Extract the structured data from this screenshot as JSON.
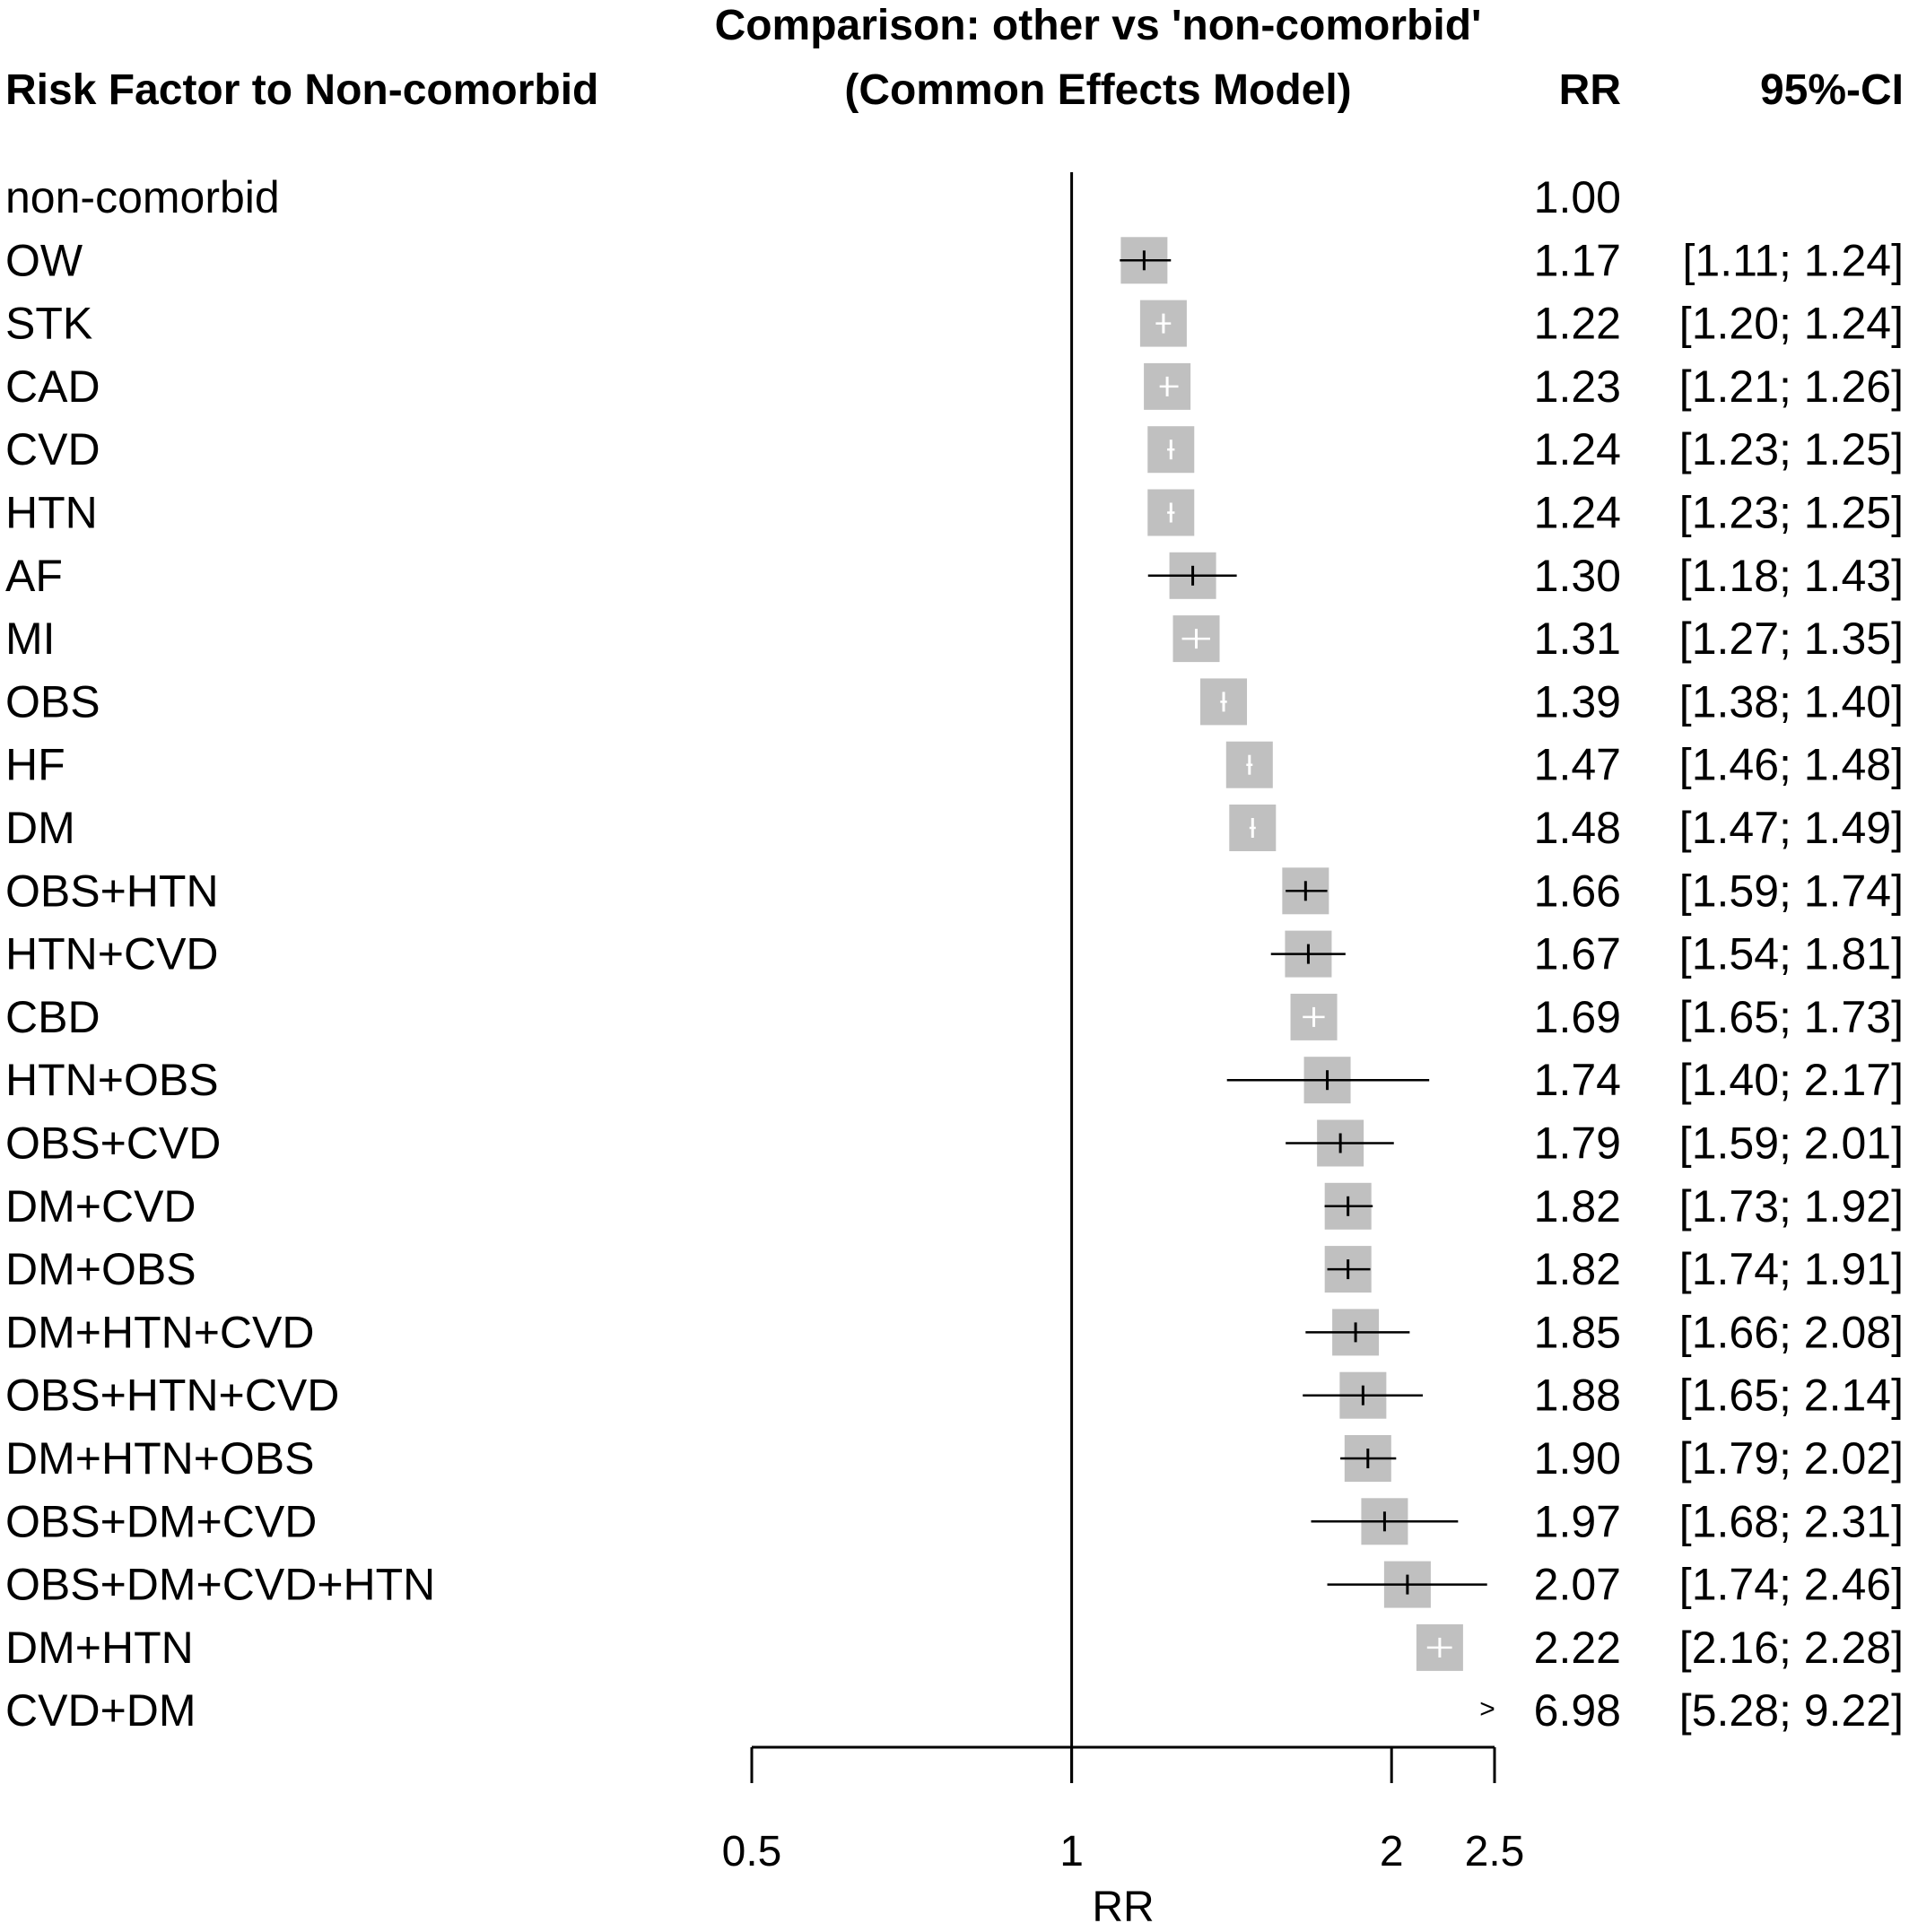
{
  "chart_data": {
    "type": "forest",
    "title": "Comparison: other vs 'non-comorbid'",
    "subtitle": "(Common Effects Model)",
    "label_header": "Risk Factor to Non-comorbid",
    "rr_header": "RR",
    "ci_header": "95%-CI",
    "xlabel": "RR",
    "x_scale": "log",
    "xlim": [
      0.5,
      2.5
    ],
    "xticks": [
      {
        "value": 0.5,
        "label": "0.5"
      },
      {
        "value": 1,
        "label": "1"
      },
      {
        "value": 2,
        "label": "2"
      },
      {
        "value": 2.5,
        "label": "2.5"
      }
    ],
    "reference_line": 1,
    "out_of_range_marker": ">",
    "colors": {
      "box": "#c0c0c0",
      "line": "#000000",
      "inner_tick": "#ffffff"
    },
    "rows": [
      {
        "label": "non-comorbid",
        "rr": 1.0,
        "lower": null,
        "upper": null,
        "rr_text": "1.00",
        "ci_text": ""
      },
      {
        "label": "OW",
        "rr": 1.17,
        "lower": 1.11,
        "upper": 1.24,
        "rr_text": "1.17",
        "ci_text": "[1.11; 1.24]"
      },
      {
        "label": "STK",
        "rr": 1.22,
        "lower": 1.2,
        "upper": 1.24,
        "rr_text": "1.22",
        "ci_text": "[1.20; 1.24]"
      },
      {
        "label": "CAD",
        "rr": 1.23,
        "lower": 1.21,
        "upper": 1.26,
        "rr_text": "1.23",
        "ci_text": "[1.21; 1.26]"
      },
      {
        "label": "CVD",
        "rr": 1.24,
        "lower": 1.23,
        "upper": 1.25,
        "rr_text": "1.24",
        "ci_text": "[1.23; 1.25]"
      },
      {
        "label": "HTN",
        "rr": 1.24,
        "lower": 1.23,
        "upper": 1.25,
        "rr_text": "1.24",
        "ci_text": "[1.23; 1.25]"
      },
      {
        "label": "AF",
        "rr": 1.3,
        "lower": 1.18,
        "upper": 1.43,
        "rr_text": "1.30",
        "ci_text": "[1.18; 1.43]"
      },
      {
        "label": "MI",
        "rr": 1.31,
        "lower": 1.27,
        "upper": 1.35,
        "rr_text": "1.31",
        "ci_text": "[1.27; 1.35]"
      },
      {
        "label": "OBS",
        "rr": 1.39,
        "lower": 1.38,
        "upper": 1.4,
        "rr_text": "1.39",
        "ci_text": "[1.38; 1.40]"
      },
      {
        "label": "HF",
        "rr": 1.47,
        "lower": 1.46,
        "upper": 1.48,
        "rr_text": "1.47",
        "ci_text": "[1.46; 1.48]"
      },
      {
        "label": "DM",
        "rr": 1.48,
        "lower": 1.47,
        "upper": 1.49,
        "rr_text": "1.48",
        "ci_text": "[1.47; 1.49]"
      },
      {
        "label": "OBS+HTN",
        "rr": 1.66,
        "lower": 1.59,
        "upper": 1.74,
        "rr_text": "1.66",
        "ci_text": "[1.59; 1.74]"
      },
      {
        "label": "HTN+CVD",
        "rr": 1.67,
        "lower": 1.54,
        "upper": 1.81,
        "rr_text": "1.67",
        "ci_text": "[1.54; 1.81]"
      },
      {
        "label": "CBD",
        "rr": 1.69,
        "lower": 1.65,
        "upper": 1.73,
        "rr_text": "1.69",
        "ci_text": "[1.65; 1.73]"
      },
      {
        "label": "HTN+OBS",
        "rr": 1.74,
        "lower": 1.4,
        "upper": 2.17,
        "rr_text": "1.74",
        "ci_text": "[1.40; 2.17]"
      },
      {
        "label": "OBS+CVD",
        "rr": 1.79,
        "lower": 1.59,
        "upper": 2.01,
        "rr_text": "1.79",
        "ci_text": "[1.59; 2.01]"
      },
      {
        "label": "DM+CVD",
        "rr": 1.82,
        "lower": 1.73,
        "upper": 1.92,
        "rr_text": "1.82",
        "ci_text": "[1.73; 1.92]"
      },
      {
        "label": "DM+OBS",
        "rr": 1.82,
        "lower": 1.74,
        "upper": 1.91,
        "rr_text": "1.82",
        "ci_text": "[1.74; 1.91]"
      },
      {
        "label": "DM+HTN+CVD",
        "rr": 1.85,
        "lower": 1.66,
        "upper": 2.08,
        "rr_text": "1.85",
        "ci_text": "[1.66; 2.08]"
      },
      {
        "label": "OBS+HTN+CVD",
        "rr": 1.88,
        "lower": 1.65,
        "upper": 2.14,
        "rr_text": "1.88",
        "ci_text": "[1.65; 2.14]"
      },
      {
        "label": "DM+HTN+OBS",
        "rr": 1.9,
        "lower": 1.79,
        "upper": 2.02,
        "rr_text": "1.90",
        "ci_text": "[1.79; 2.02]"
      },
      {
        "label": "OBS+DM+CVD",
        "rr": 1.97,
        "lower": 1.68,
        "upper": 2.31,
        "rr_text": "1.97",
        "ci_text": "[1.68; 2.31]"
      },
      {
        "label": "OBS+DM+CVD+HTN",
        "rr": 2.07,
        "lower": 1.74,
        "upper": 2.46,
        "rr_text": "2.07",
        "ci_text": "[1.74; 2.46]"
      },
      {
        "label": "DM+HTN",
        "rr": 2.22,
        "lower": 2.16,
        "upper": 2.28,
        "rr_text": "2.22",
        "ci_text": "[2.16; 2.28]"
      },
      {
        "label": "CVD+DM",
        "rr": 6.98,
        "lower": 5.28,
        "upper": 9.22,
        "rr_text": "6.98",
        "ci_text": "[5.28; 9.22]"
      }
    ]
  }
}
